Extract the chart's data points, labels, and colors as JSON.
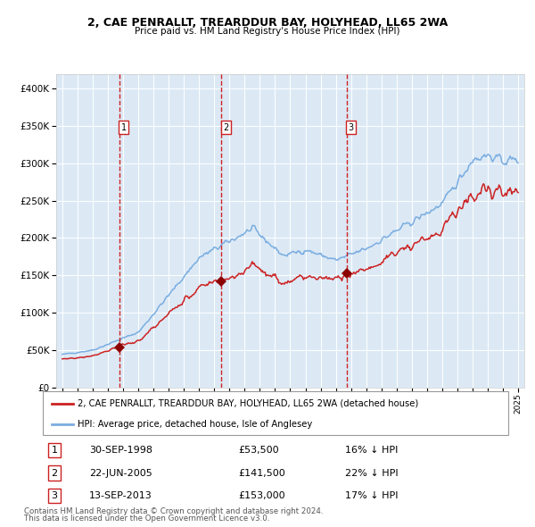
{
  "title": "2, CAE PENRALLT, TREARDDUR BAY, HOLYHEAD, LL65 2WA",
  "subtitle": "Price paid vs. HM Land Registry's House Price Index (HPI)",
  "bg_color": "#dce9f5",
  "legend_label_red": "2, CAE PENRALLT, TREARDDUR BAY, HOLYHEAD, LL65 2WA (detached house)",
  "legend_label_blue": "HPI: Average price, detached house, Isle of Anglesey",
  "footer1": "Contains HM Land Registry data © Crown copyright and database right 2024.",
  "footer2": "This data is licensed under the Open Government Licence v3.0.",
  "transactions": [
    {
      "num": 1,
      "date": "30-SEP-1998",
      "price": 53500,
      "year": 1998.75,
      "pct": "16% ↓ HPI"
    },
    {
      "num": 2,
      "date": "22-JUN-2005",
      "price": 141500,
      "year": 2005.47,
      "pct": "22% ↓ HPI"
    },
    {
      "num": 3,
      "date": "13-SEP-2013",
      "price": 153000,
      "year": 2013.7,
      "pct": "17% ↓ HPI"
    }
  ],
  "hpi_color": "#7aade0",
  "price_color": "#cc2222",
  "marker_color": "#8b0000",
  "vline_color": "#cc0000",
  "ylim": [
    0,
    420000
  ],
  "xlim_start": 1994.6,
  "xlim_end": 2025.4
}
